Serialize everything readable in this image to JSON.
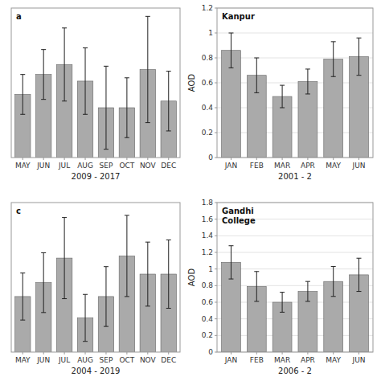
{
  "chart_data": [
    {
      "type": "bar",
      "categories": [
        "MAY",
        "JUN",
        "JUL",
        "AUG",
        "SEP",
        "OCT",
        "NOV",
        "DEC"
      ],
      "values": [
        0.78,
        0.9,
        0.96,
        0.86,
        0.7,
        0.7,
        0.93,
        0.74
      ],
      "errors": [
        0.12,
        0.15,
        0.22,
        0.2,
        0.25,
        0.18,
        0.32,
        0.18
      ],
      "color": "#aaaaaa",
      "ylim": [
        0.4,
        1.3
      ],
      "xlabel": "2009 - 2017",
      "annotations": [
        "a"
      ],
      "grid": false,
      "tick_labels": "x"
    },
    {
      "type": "bar",
      "categories": [
        "JAN",
        "FEB",
        "MAR",
        "APR",
        "MAY",
        "JUN"
      ],
      "values": [
        0.86,
        0.66,
        0.49,
        0.61,
        0.79,
        0.81
      ],
      "errors": [
        0.14,
        0.14,
        0.09,
        0.1,
        0.14,
        0.15
      ],
      "color": "#aaaaaa",
      "ylim": [
        0,
        1.2
      ],
      "yticks": [
        0,
        0.2,
        0.4,
        0.6,
        0.8,
        1,
        1.2
      ],
      "ylabel": "AOD",
      "xlabel": "2001 - 2",
      "annotations": [
        "Kanpur"
      ],
      "grid": true
    },
    {
      "type": "bar",
      "categories": [
        "MAY",
        "JUN",
        "JUL",
        "AUG",
        "SEP",
        "OCT",
        "NOV",
        "DEC"
      ],
      "values": [
        1.22,
        1.35,
        1.58,
        1.02,
        1.22,
        1.6,
        1.43,
        1.43
      ],
      "errors": [
        0.22,
        0.28,
        0.38,
        0.22,
        0.28,
        0.38,
        0.3,
        0.32
      ],
      "color": "#aaaaaa",
      "ylim": [
        0.7,
        2.1
      ],
      "xlabel": "2004 - 2019",
      "annotations": [
        "c"
      ],
      "grid": false,
      "tick_labels": "x"
    },
    {
      "type": "bar",
      "categories": [
        "JAN",
        "FEB",
        "MAR",
        "APR",
        "MAY",
        "JUN"
      ],
      "values": [
        1.08,
        0.79,
        0.6,
        0.73,
        0.85,
        0.93
      ],
      "errors": [
        0.2,
        0.18,
        0.12,
        0.12,
        0.18,
        0.2
      ],
      "color": "#aaaaaa",
      "ylim": [
        0,
        1.8
      ],
      "yticks": [
        0,
        0.2,
        0.4,
        0.6,
        0.8,
        1,
        1.2,
        1.4,
        1.6,
        1.8
      ],
      "ylabel": "AOD",
      "xlabel": "2006 - 2",
      "annotations": [
        "Gandhi\nCollege"
      ],
      "grid": true
    }
  ]
}
